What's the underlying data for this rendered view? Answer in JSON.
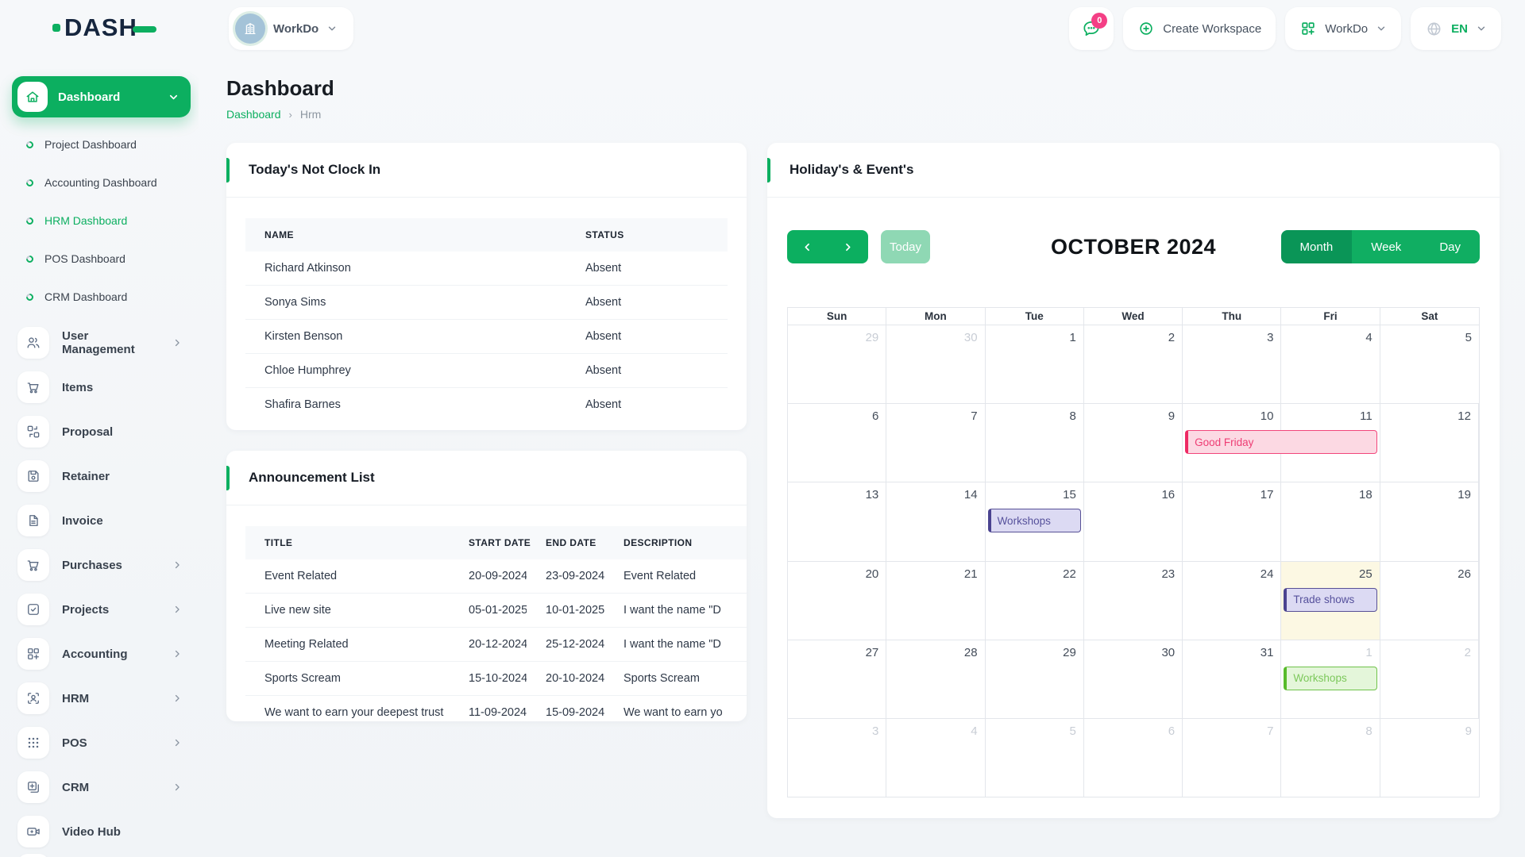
{
  "app": {
    "logo_text": "DASH"
  },
  "topbar": {
    "workspace_selector": {
      "label": "WorkDo"
    },
    "notifications": {
      "badge": "0"
    },
    "create_workspace_label": "Create Workspace",
    "apps_button_label": "WorkDo",
    "language": {
      "code": "EN"
    }
  },
  "sidebar": {
    "active_group": {
      "label": "Dashboard",
      "icon": "home",
      "children": [
        {
          "label": "Project Dashboard",
          "active": false
        },
        {
          "label": "Accounting Dashboard",
          "active": false
        },
        {
          "label": "HRM Dashboard",
          "active": true
        },
        {
          "label": "POS Dashboard",
          "active": false
        },
        {
          "label": "CRM Dashboard",
          "active": false
        }
      ]
    },
    "sections": [
      {
        "label": "User Management",
        "icon": "users",
        "expandable": true
      },
      {
        "label": "Items",
        "icon": "cart",
        "expandable": false
      },
      {
        "label": "Proposal",
        "icon": "proposal",
        "expandable": false
      },
      {
        "label": "Retainer",
        "icon": "retainer",
        "expandable": false
      },
      {
        "label": "Invoice",
        "icon": "invoice",
        "expandable": false
      },
      {
        "label": "Purchases",
        "icon": "cart",
        "expandable": true
      },
      {
        "label": "Projects",
        "icon": "projects",
        "expandable": true
      },
      {
        "label": "Accounting",
        "icon": "accounting",
        "expandable": true
      },
      {
        "label": "HRM",
        "icon": "hrm",
        "expandable": true
      },
      {
        "label": "POS",
        "icon": "pos",
        "expandable": true
      },
      {
        "label": "CRM",
        "icon": "crm",
        "expandable": true
      },
      {
        "label": "Video Hub",
        "icon": "video",
        "expandable": false
      }
    ]
  },
  "page": {
    "title": "Dashboard",
    "breadcrumb": {
      "root": "Dashboard",
      "current": "Hrm"
    }
  },
  "clockin_card": {
    "title": "Today's Not Clock In",
    "columns": [
      "NAME",
      "STATUS"
    ],
    "rows": [
      {
        "name": "Richard Atkinson",
        "status": "Absent"
      },
      {
        "name": "Sonya Sims",
        "status": "Absent"
      },
      {
        "name": "Kirsten Benson",
        "status": "Absent"
      },
      {
        "name": "Chloe Humphrey",
        "status": "Absent"
      },
      {
        "name": "Shafira Barnes",
        "status": "Absent"
      }
    ]
  },
  "announcement_card": {
    "title": "Announcement List",
    "columns": [
      "TITLE",
      "START DATE",
      "END DATE",
      "DESCRIPTION"
    ],
    "rows": [
      {
        "title": "Event Related",
        "start": "20-09-2024",
        "end": "23-09-2024",
        "description": "Event Related"
      },
      {
        "title": "Live new site",
        "start": "05-01-2025",
        "end": "10-01-2025",
        "description": "I want the name \"D"
      },
      {
        "title": "Meeting Related",
        "start": "20-12-2024",
        "end": "25-12-2024",
        "description": "I want the name \"D"
      },
      {
        "title": "Sports Scream",
        "start": "15-10-2024",
        "end": "20-10-2024",
        "description": "Sports Scream"
      },
      {
        "title": "We want to earn your deepest trust",
        "start": "11-09-2024",
        "end": "15-09-2024",
        "description": "We want to earn yo"
      }
    ]
  },
  "calendar_card": {
    "title": "Holiday's & Event's",
    "toolbar": {
      "today_label": "Today",
      "month_title": "OCTOBER 2024",
      "views": [
        {
          "label": "Month",
          "active": true
        },
        {
          "label": "Week",
          "active": false
        },
        {
          "label": "Day",
          "active": false
        }
      ]
    },
    "day_headers": [
      "Sun",
      "Mon",
      "Tue",
      "Wed",
      "Thu",
      "Fri",
      "Sat"
    ],
    "weeks": [
      [
        {
          "n": "29",
          "muted": true
        },
        {
          "n": "30",
          "muted": true
        },
        {
          "n": "1"
        },
        {
          "n": "2"
        },
        {
          "n": "3"
        },
        {
          "n": "4"
        },
        {
          "n": "5"
        }
      ],
      [
        {
          "n": "6"
        },
        {
          "n": "7"
        },
        {
          "n": "8"
        },
        {
          "n": "9"
        },
        {
          "n": "10"
        },
        {
          "n": "11"
        },
        {
          "n": "12"
        }
      ],
      [
        {
          "n": "13"
        },
        {
          "n": "14"
        },
        {
          "n": "15"
        },
        {
          "n": "16"
        },
        {
          "n": "17"
        },
        {
          "n": "18"
        },
        {
          "n": "19"
        }
      ],
      [
        {
          "n": "20"
        },
        {
          "n": "21"
        },
        {
          "n": "22"
        },
        {
          "n": "23"
        },
        {
          "n": "24"
        },
        {
          "n": "25"
        },
        {
          "n": "26"
        }
      ],
      [
        {
          "n": "27"
        },
        {
          "n": "28"
        },
        {
          "n": "29"
        },
        {
          "n": "30"
        },
        {
          "n": "31"
        },
        {
          "n": "1",
          "muted": true
        },
        {
          "n": "2",
          "muted": true
        }
      ],
      [
        {
          "n": "3",
          "muted": true
        },
        {
          "n": "4",
          "muted": true
        },
        {
          "n": "5",
          "muted": true
        },
        {
          "n": "6",
          "muted": true
        },
        {
          "n": "7",
          "muted": true
        },
        {
          "n": "8",
          "muted": true
        },
        {
          "n": "9",
          "muted": true
        }
      ]
    ],
    "today_cell": {
      "week": 3,
      "col": 5
    },
    "events": [
      {
        "title": "Good Friday",
        "week": 1,
        "col": 4,
        "span": 2,
        "variant": "pink"
      },
      {
        "title": "Workshops",
        "week": 2,
        "col": 2,
        "span": 1,
        "variant": "purple"
      },
      {
        "title": "Trade shows",
        "week": 3,
        "col": 5,
        "span": 1,
        "variant": "purple"
      },
      {
        "title": "Workshops",
        "week": 4,
        "col": 5,
        "span": 1,
        "variant": "green"
      }
    ]
  },
  "colors": {
    "primary": "#0CAF60",
    "primary_dark": "#0a9557",
    "badge": "#f43f85",
    "today_cell_bg": "#fcf8e3",
    "event_pink": "#ee2a64",
    "event_purple": "#4a4390",
    "event_green": "#57bb2a"
  }
}
